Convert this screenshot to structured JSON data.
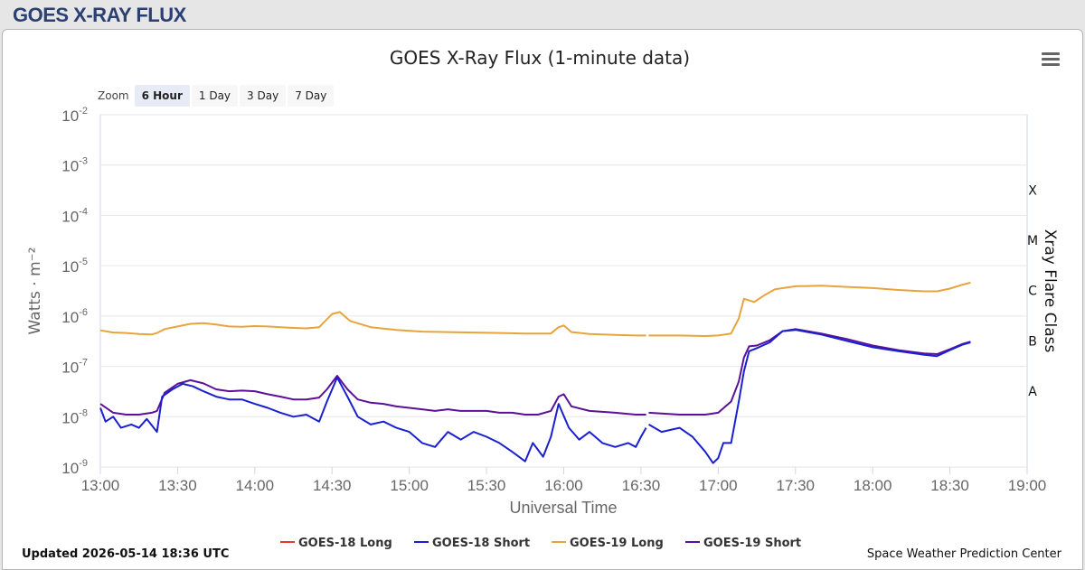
{
  "page": {
    "header_title": "GOES X-RAY FLUX",
    "updated_text": "Updated 2026-05-14 18:36 UTC",
    "credit_text": "Space Weather Prediction Center",
    "menu_icon": "hamburger-menu-icon"
  },
  "zoom": {
    "label": "Zoom",
    "buttons": [
      {
        "label": "6 Hour",
        "active": true
      },
      {
        "label": "1 Day",
        "active": false
      },
      {
        "label": "3 Day",
        "active": false
      },
      {
        "label": "7 Day",
        "active": false
      }
    ]
  },
  "colors": {
    "goes18_long": "#e8382c",
    "goes18_short": "#1a20d0",
    "goes19_long": "#e8a43c",
    "goes19_short": "#5a1098",
    "gridline": "#e6e6e6",
    "axis_text": "#666666"
  },
  "chart_data": {
    "type": "line",
    "title": "GOES X-Ray Flux (1-minute data)",
    "xlabel": "Universal Time",
    "ylabel": "Watts · m⁻²",
    "y2label": "Xray Flare Class",
    "y_scale": "log",
    "ylim": [
      1e-09,
      0.01
    ],
    "xlim": [
      "13:00",
      "19:00"
    ],
    "x_ticks": [
      "13:00",
      "13:30",
      "14:00",
      "14:30",
      "15:00",
      "15:30",
      "16:00",
      "16:30",
      "17:00",
      "17:30",
      "18:00",
      "18:30",
      "19:00"
    ],
    "y_ticks": [
      {
        "base": "10",
        "exp": "-2",
        "value": 0.01
      },
      {
        "base": "10",
        "exp": "-3",
        "value": 0.001
      },
      {
        "base": "10",
        "exp": "-4",
        "value": 0.0001
      },
      {
        "base": "10",
        "exp": "-5",
        "value": 1e-05
      },
      {
        "base": "10",
        "exp": "-6",
        "value": 1e-06
      },
      {
        "base": "10",
        "exp": "-7",
        "value": 1e-07
      },
      {
        "base": "10",
        "exp": "-8",
        "value": 1e-08
      },
      {
        "base": "10",
        "exp": "-9",
        "value": 1e-09
      }
    ],
    "flare_classes": [
      {
        "label": "X",
        "value": 0.00032
      },
      {
        "label": "M",
        "value": 3.2e-05
      },
      {
        "label": "C",
        "value": 3.2e-06
      },
      {
        "label": "B",
        "value": 3.2e-07
      },
      {
        "label": "A",
        "value": 3.2e-08
      }
    ],
    "grid": true,
    "legend_position": "bottom",
    "series": [
      {
        "name": "GOES-18 Long",
        "color_key": "goes18_long",
        "points": []
      },
      {
        "name": "GOES-18 Short",
        "color_key": "goes18_short",
        "points": [
          [
            "13:00",
            1.5e-08
          ],
          [
            "13:02",
            8e-09
          ],
          [
            "13:05",
            1e-08
          ],
          [
            "13:08",
            6e-09
          ],
          [
            "13:12",
            7e-09
          ],
          [
            "13:15",
            6e-09
          ],
          [
            "13:18",
            9e-09
          ],
          [
            "13:22",
            5e-09
          ],
          [
            "13:24",
            2.5e-08
          ],
          [
            "13:28",
            3.5e-08
          ],
          [
            "13:32",
            4.5e-08
          ],
          [
            "13:36",
            4e-08
          ],
          [
            "13:40",
            3.2e-08
          ],
          [
            "13:45",
            2.5e-08
          ],
          [
            "13:50",
            2.2e-08
          ],
          [
            "13:55",
            2.2e-08
          ],
          [
            "14:00",
            1.8e-08
          ],
          [
            "14:05",
            1.5e-08
          ],
          [
            "14:10",
            1.2e-08
          ],
          [
            "14:15",
            1e-08
          ],
          [
            "14:20",
            1.1e-08
          ],
          [
            "14:25",
            8e-09
          ],
          [
            "14:28",
            2e-08
          ],
          [
            "14:32",
            6e-08
          ],
          [
            "14:36",
            2.5e-08
          ],
          [
            "14:40",
            1e-08
          ],
          [
            "14:45",
            7e-09
          ],
          [
            "14:50",
            8e-09
          ],
          [
            "14:55",
            6e-09
          ],
          [
            "15:00",
            5e-09
          ],
          [
            "15:05",
            3e-09
          ],
          [
            "15:10",
            2.5e-09
          ],
          [
            "15:15",
            5e-09
          ],
          [
            "15:20",
            3.5e-09
          ],
          [
            "15:25",
            5e-09
          ],
          [
            "15:30",
            4e-09
          ],
          [
            "15:35",
            3e-09
          ],
          [
            "15:40",
            2e-09
          ],
          [
            "15:45",
            1.3e-09
          ],
          [
            "15:48",
            3e-09
          ],
          [
            "15:52",
            1.6e-09
          ],
          [
            "15:55",
            4e-09
          ],
          [
            "15:58",
            1.8e-08
          ],
          [
            "16:02",
            6e-09
          ],
          [
            "16:06",
            3.5e-09
          ],
          [
            "16:10",
            5e-09
          ],
          [
            "16:15",
            3e-09
          ],
          [
            "16:20",
            2.5e-09
          ],
          [
            "16:25",
            3e-09
          ],
          [
            "16:28",
            2.5e-09
          ],
          [
            "16:30",
            4e-09
          ],
          [
            "16:32",
            6e-09
          ],
          null,
          [
            "16:33",
            7e-09
          ],
          [
            "16:38",
            5e-09
          ],
          [
            "16:45",
            6e-09
          ],
          [
            "16:50",
            4e-09
          ],
          [
            "16:55",
            2e-09
          ],
          [
            "16:58",
            1.2e-09
          ],
          [
            "17:00",
            1.5e-09
          ],
          [
            "17:02",
            3e-09
          ],
          [
            "17:05",
            3e-09
          ],
          [
            "17:08",
            2e-08
          ],
          [
            "17:10",
            8e-08
          ],
          [
            "17:12",
            2e-07
          ],
          [
            "17:15",
            2.3e-07
          ],
          [
            "17:20",
            3e-07
          ],
          [
            "17:25",
            5e-07
          ],
          [
            "17:30",
            5.3e-07
          ],
          [
            "17:40",
            4.3e-07
          ],
          [
            "17:50",
            3.2e-07
          ],
          [
            "18:00",
            2.4e-07
          ],
          [
            "18:10",
            2e-07
          ],
          [
            "18:20",
            1.7e-07
          ],
          [
            "18:25",
            1.6e-07
          ],
          [
            "18:30",
            2.1e-07
          ],
          [
            "18:35",
            2.7e-07
          ],
          [
            "18:38",
            3e-07
          ]
        ]
      },
      {
        "name": "GOES-19 Long",
        "color_key": "goes19_long",
        "points": [
          [
            "13:00",
            5.2e-07
          ],
          [
            "13:05",
            4.7e-07
          ],
          [
            "13:10",
            4.6e-07
          ],
          [
            "13:15",
            4.4e-07
          ],
          [
            "13:20",
            4.3e-07
          ],
          [
            "13:22",
            4.6e-07
          ],
          [
            "13:25",
            5.5e-07
          ],
          [
            "13:30",
            6.2e-07
          ],
          [
            "13:35",
            7e-07
          ],
          [
            "13:40",
            7.2e-07
          ],
          [
            "13:45",
            6.8e-07
          ],
          [
            "13:50",
            6.2e-07
          ],
          [
            "13:55",
            6.1e-07
          ],
          [
            "14:00",
            6.3e-07
          ],
          [
            "14:05",
            6.2e-07
          ],
          [
            "14:10",
            6e-07
          ],
          [
            "14:15",
            5.8e-07
          ],
          [
            "14:20",
            5.7e-07
          ],
          [
            "14:25",
            6e-07
          ],
          [
            "14:30",
            1.1e-06
          ],
          [
            "14:33",
            1.2e-06
          ],
          [
            "14:37",
            8e-07
          ],
          [
            "14:45",
            6e-07
          ],
          [
            "14:55",
            5.3e-07
          ],
          [
            "15:05",
            4.9e-07
          ],
          [
            "15:15",
            4.8e-07
          ],
          [
            "15:25",
            4.7e-07
          ],
          [
            "15:35",
            4.6e-07
          ],
          [
            "15:45",
            4.5e-07
          ],
          [
            "15:55",
            4.5e-07
          ],
          [
            "15:58",
            6e-07
          ],
          [
            "16:00",
            6.5e-07
          ],
          [
            "16:03",
            4.8e-07
          ],
          [
            "16:10",
            4.4e-07
          ],
          [
            "16:20",
            4.2e-07
          ],
          [
            "16:28",
            4.1e-07
          ],
          [
            "16:32",
            4.1e-07
          ],
          null,
          [
            "16:33",
            4.1e-07
          ],
          [
            "16:45",
            4.1e-07
          ],
          [
            "16:55",
            4e-07
          ],
          [
            "17:00",
            4.1e-07
          ],
          [
            "17:05",
            4.5e-07
          ],
          [
            "17:08",
            9e-07
          ],
          [
            "17:10",
            2.2e-06
          ],
          [
            "17:14",
            1.9e-06
          ],
          [
            "17:18",
            2.6e-06
          ],
          [
            "17:22",
            3.4e-06
          ],
          [
            "17:30",
            3.9e-06
          ],
          [
            "17:40",
            4e-06
          ],
          [
            "17:50",
            3.8e-06
          ],
          [
            "18:00",
            3.6e-06
          ],
          [
            "18:10",
            3.3e-06
          ],
          [
            "18:20",
            3.1e-06
          ],
          [
            "18:25",
            3.1e-06
          ],
          [
            "18:30",
            3.5e-06
          ],
          [
            "18:35",
            4.2e-06
          ],
          [
            "18:38",
            4.6e-06
          ]
        ]
      },
      {
        "name": "GOES-19 Short",
        "color_key": "goes19_short",
        "points": [
          [
            "13:00",
            1.8e-08
          ],
          [
            "13:05",
            1.2e-08
          ],
          [
            "13:10",
            1.1e-08
          ],
          [
            "13:15",
            1.1e-08
          ],
          [
            "13:20",
            1.2e-08
          ],
          [
            "13:22",
            1.3e-08
          ],
          [
            "13:25",
            3e-08
          ],
          [
            "13:30",
            4.5e-08
          ],
          [
            "13:35",
            5.3e-08
          ],
          [
            "13:40",
            4.6e-08
          ],
          [
            "13:45",
            3.5e-08
          ],
          [
            "13:50",
            3.2e-08
          ],
          [
            "13:55",
            3.3e-08
          ],
          [
            "14:00",
            3.2e-08
          ],
          [
            "14:05",
            2.8e-08
          ],
          [
            "14:10",
            2.5e-08
          ],
          [
            "14:15",
            2.2e-08
          ],
          [
            "14:20",
            2.2e-08
          ],
          [
            "14:25",
            2.4e-08
          ],
          [
            "14:28",
            3.5e-08
          ],
          [
            "14:32",
            6.5e-08
          ],
          [
            "14:36",
            3.5e-08
          ],
          [
            "14:40",
            2.2e-08
          ],
          [
            "14:45",
            1.9e-08
          ],
          [
            "14:50",
            1.8e-08
          ],
          [
            "14:55",
            1.6e-08
          ],
          [
            "15:00",
            1.5e-08
          ],
          [
            "15:05",
            1.4e-08
          ],
          [
            "15:10",
            1.3e-08
          ],
          [
            "15:15",
            1.4e-08
          ],
          [
            "15:20",
            1.3e-08
          ],
          [
            "15:25",
            1.3e-08
          ],
          [
            "15:30",
            1.3e-08
          ],
          [
            "15:35",
            1.2e-08
          ],
          [
            "15:40",
            1.2e-08
          ],
          [
            "15:45",
            1.1e-08
          ],
          [
            "15:50",
            1.1e-08
          ],
          [
            "15:55",
            1.3e-08
          ],
          [
            "15:58",
            2.5e-08
          ],
          [
            "16:00",
            2.8e-08
          ],
          [
            "16:03",
            1.6e-08
          ],
          [
            "16:10",
            1.3e-08
          ],
          [
            "16:20",
            1.2e-08
          ],
          [
            "16:28",
            1.1e-08
          ],
          [
            "16:32",
            1.1e-08
          ],
          null,
          [
            "16:33",
            1.2e-08
          ],
          [
            "16:45",
            1.1e-08
          ],
          [
            "16:55",
            1.1e-08
          ],
          [
            "17:00",
            1.2e-08
          ],
          [
            "17:05",
            2e-08
          ],
          [
            "17:08",
            5e-08
          ],
          [
            "17:10",
            1.5e-07
          ],
          [
            "17:12",
            2.5e-07
          ],
          [
            "17:15",
            2.6e-07
          ],
          [
            "17:20",
            3.3e-07
          ],
          [
            "17:25",
            5e-07
          ],
          [
            "17:30",
            5.5e-07
          ],
          [
            "17:40",
            4.5e-07
          ],
          [
            "17:50",
            3.5e-07
          ],
          [
            "18:00",
            2.6e-07
          ],
          [
            "18:10",
            2.1e-07
          ],
          [
            "18:20",
            1.8e-07
          ],
          [
            "18:25",
            1.75e-07
          ],
          [
            "18:30",
            2.2e-07
          ],
          [
            "18:35",
            2.8e-07
          ],
          [
            "18:38",
            3.1e-07
          ]
        ]
      }
    ]
  }
}
